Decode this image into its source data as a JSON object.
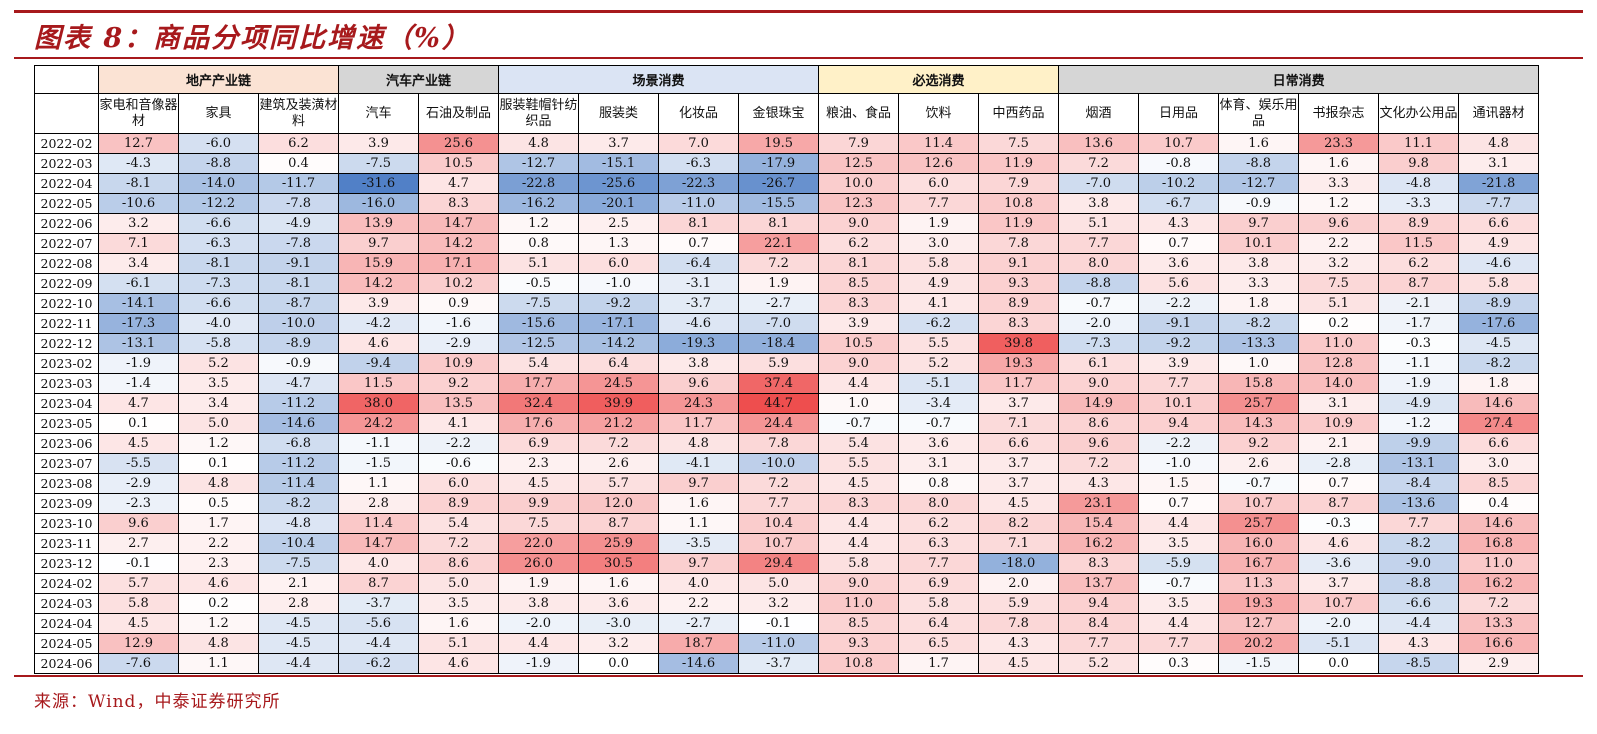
{
  "title": "图表 8：商品分项同比增速（%）",
  "source": "来源：Wind，中泰证券研究所",
  "colors": {
    "accent": "#a7191c",
    "negative_scale": "#4f7fc6",
    "positive_scale": "#ee4d4d"
  },
  "groups": [
    {
      "label": "地产产业链",
      "span": 3,
      "color": "#fbe3d4"
    },
    {
      "label": "汽车产业链",
      "span": 2,
      "color": "#d6d6d6"
    },
    {
      "label": "场景消费",
      "span": 4,
      "color": "#dbe4f4"
    },
    {
      "label": "必选消费",
      "span": 3,
      "color": "#fff1c8"
    },
    {
      "label": "日常消费",
      "span": 6,
      "color": "#d6d6d6"
    }
  ],
  "columns": [
    "家电和音像器材",
    "家具",
    "建筑及装潢材料",
    "汽车",
    "石油及制品",
    "服装鞋帽针纺织品",
    "服装类",
    "化妆品",
    "金银珠宝",
    "粮油、食品",
    "饮料",
    "中西药品",
    "烟酒",
    "日用品",
    "体育、娱乐用品",
    "书报杂志",
    "文化办公用品",
    "通讯器材"
  ],
  "rows": [
    [
      "2022-02",
      "12.7",
      "-6.0",
      "6.2",
      "3.9",
      "25.6",
      "4.8",
      "3.7",
      "7.0",
      "19.5",
      "7.9",
      "11.4",
      "7.5",
      "13.6",
      "10.7",
      "1.6",
      "23.3",
      "11.1",
      "4.8"
    ],
    [
      "2022-03",
      "-4.3",
      "-8.8",
      "0.4",
      "-7.5",
      "10.5",
      "-12.7",
      "-15.1",
      "-6.3",
      "-17.9",
      "12.5",
      "12.6",
      "11.9",
      "7.2",
      "-0.8",
      "-8.8",
      "1.6",
      "9.8",
      "3.1"
    ],
    [
      "2022-04",
      "-8.1",
      "-14.0",
      "-11.7",
      "-31.6",
      "4.7",
      "-22.8",
      "-25.6",
      "-22.3",
      "-26.7",
      "10.0",
      "6.0",
      "7.9",
      "-7.0",
      "-10.2",
      "-12.7",
      "3.3",
      "-4.8",
      "-21.8"
    ],
    [
      "2022-05",
      "-10.6",
      "-12.2",
      "-7.8",
      "-16.0",
      "8.3",
      "-16.2",
      "-20.1",
      "-11.0",
      "-15.5",
      "12.3",
      "7.7",
      "10.8",
      "3.8",
      "-6.7",
      "-0.9",
      "1.2",
      "-3.3",
      "-7.7"
    ],
    [
      "2022-06",
      "3.2",
      "-6.6",
      "-4.9",
      "13.9",
      "14.7",
      "1.2",
      "2.5",
      "8.1",
      "8.1",
      "9.0",
      "1.9",
      "11.9",
      "5.1",
      "4.3",
      "9.7",
      "9.6",
      "8.9",
      "6.6"
    ],
    [
      "2022-07",
      "7.1",
      "-6.3",
      "-7.8",
      "9.7",
      "14.2",
      "0.8",
      "1.3",
      "0.7",
      "22.1",
      "6.2",
      "3.0",
      "7.8",
      "7.7",
      "0.7",
      "10.1",
      "2.2",
      "11.5",
      "4.9"
    ],
    [
      "2022-08",
      "3.4",
      "-8.1",
      "-9.1",
      "15.9",
      "17.1",
      "5.1",
      "6.0",
      "-6.4",
      "7.2",
      "8.1",
      "5.8",
      "9.1",
      "8.0",
      "3.6",
      "3.8",
      "3.2",
      "6.2",
      "-4.6"
    ],
    [
      "2022-09",
      "-6.1",
      "-7.3",
      "-8.1",
      "14.2",
      "10.2",
      "-0.5",
      "-1.0",
      "-3.1",
      "1.9",
      "8.5",
      "4.9",
      "9.3",
      "-8.8",
      "5.6",
      "3.3",
      "7.5",
      "8.7",
      "5.8"
    ],
    [
      "2022-10",
      "-14.1",
      "-6.6",
      "-8.7",
      "3.9",
      "0.9",
      "-7.5",
      "-9.2",
      "-3.7",
      "-2.7",
      "8.3",
      "4.1",
      "8.9",
      "-0.7",
      "-2.2",
      "1.8",
      "5.1",
      "-2.1",
      "-8.9"
    ],
    [
      "2022-11",
      "-17.3",
      "-4.0",
      "-10.0",
      "-4.2",
      "-1.6",
      "-15.6",
      "-17.1",
      "-4.6",
      "-7.0",
      "3.9",
      "-6.2",
      "8.3",
      "-2.0",
      "-9.1",
      "-8.2",
      "0.2",
      "-1.7",
      "-17.6"
    ],
    [
      "2022-12",
      "-13.1",
      "-5.8",
      "-8.9",
      "4.6",
      "-2.9",
      "-12.5",
      "-14.2",
      "-19.3",
      "-18.4",
      "10.5",
      "5.5",
      "39.8",
      "-7.3",
      "-9.2",
      "-13.3",
      "11.0",
      "-0.3",
      "-4.5"
    ],
    [
      "2023-02",
      "-1.9",
      "5.2",
      "-0.9",
      "-9.4",
      "10.9",
      "5.4",
      "6.4",
      "3.8",
      "5.9",
      "9.0",
      "5.2",
      "19.3",
      "6.1",
      "3.9",
      "1.0",
      "12.8",
      "-1.1",
      "-8.2"
    ],
    [
      "2023-03",
      "-1.4",
      "3.5",
      "-4.7",
      "11.5",
      "9.2",
      "17.7",
      "24.5",
      "9.6",
      "37.4",
      "4.4",
      "-5.1",
      "11.7",
      "9.0",
      "7.7",
      "15.8",
      "14.0",
      "-1.9",
      "1.8"
    ],
    [
      "2023-04",
      "4.7",
      "3.4",
      "-11.2",
      "38.0",
      "13.5",
      "32.4",
      "39.9",
      "24.3",
      "44.7",
      "1.0",
      "-3.4",
      "3.7",
      "14.9",
      "10.1",
      "25.7",
      "3.1",
      "-4.9",
      "14.6"
    ],
    [
      "2023-05",
      "0.1",
      "5.0",
      "-14.6",
      "24.2",
      "4.1",
      "17.6",
      "21.2",
      "11.7",
      "24.4",
      "-0.7",
      "-0.7",
      "7.1",
      "8.6",
      "9.4",
      "14.3",
      "10.9",
      "-1.2",
      "27.4"
    ],
    [
      "2023-06",
      "4.5",
      "1.2",
      "-6.8",
      "-1.1",
      "-2.2",
      "6.9",
      "7.2",
      "4.8",
      "7.8",
      "5.4",
      "3.6",
      "6.6",
      "9.6",
      "-2.2",
      "9.2",
      "2.1",
      "-9.9",
      "6.6"
    ],
    [
      "2023-07",
      "-5.5",
      "0.1",
      "-11.2",
      "-1.5",
      "-0.6",
      "2.3",
      "2.6",
      "-4.1",
      "-10.0",
      "5.5",
      "3.1",
      "3.7",
      "7.2",
      "-1.0",
      "2.6",
      "-2.8",
      "-13.1",
      "3.0"
    ],
    [
      "2023-08",
      "-2.9",
      "4.8",
      "-11.4",
      "1.1",
      "6.0",
      "4.5",
      "5.7",
      "9.7",
      "7.2",
      "4.5",
      "0.8",
      "3.7",
      "4.3",
      "1.5",
      "-0.7",
      "0.7",
      "-8.4",
      "8.5"
    ],
    [
      "2023-09",
      "-2.3",
      "0.5",
      "-8.2",
      "2.8",
      "8.9",
      "9.9",
      "12.0",
      "1.6",
      "7.7",
      "8.3",
      "8.0",
      "4.5",
      "23.1",
      "0.7",
      "10.7",
      "8.7",
      "-13.6",
      "0.4"
    ],
    [
      "2023-10",
      "9.6",
      "1.7",
      "-4.8",
      "11.4",
      "5.4",
      "7.5",
      "8.7",
      "1.1",
      "10.4",
      "4.4",
      "6.2",
      "8.2",
      "15.4",
      "4.4",
      "25.7",
      "-0.3",
      "7.7",
      "14.6"
    ],
    [
      "2023-11",
      "2.7",
      "2.2",
      "-10.4",
      "14.7",
      "7.2",
      "22.0",
      "25.9",
      "-3.5",
      "10.7",
      "4.4",
      "6.3",
      "7.1",
      "16.2",
      "3.5",
      "16.0",
      "4.6",
      "-8.2",
      "16.8"
    ],
    [
      "2023-12",
      "-0.1",
      "2.3",
      "-7.5",
      "4.0",
      "8.6",
      "26.0",
      "30.5",
      "9.7",
      "29.4",
      "5.8",
      "7.7",
      "-18.0",
      "8.3",
      "-5.9",
      "16.7",
      "-3.6",
      "-9.0",
      "11.0"
    ],
    [
      "2024-02",
      "5.7",
      "4.6",
      "2.1",
      "8.7",
      "5.0",
      "1.9",
      "1.6",
      "4.0",
      "5.0",
      "9.0",
      "6.9",
      "2.0",
      "13.7",
      "-0.7",
      "11.3",
      "3.7",
      "-8.8",
      "16.2"
    ],
    [
      "2024-03",
      "5.8",
      "0.2",
      "2.8",
      "-3.7",
      "3.5",
      "3.8",
      "3.6",
      "2.2",
      "3.2",
      "11.0",
      "5.8",
      "5.9",
      "9.4",
      "3.5",
      "19.3",
      "10.7",
      "-6.6",
      "7.2"
    ],
    [
      "2024-04",
      "4.5",
      "1.2",
      "-4.5",
      "-5.6",
      "1.6",
      "-2.0",
      "-3.0",
      "-2.7",
      "-0.1",
      "8.5",
      "6.4",
      "7.8",
      "8.4",
      "4.4",
      "12.7",
      "-2.0",
      "-4.4",
      "13.3"
    ],
    [
      "2024-05",
      "12.9",
      "4.8",
      "-4.5",
      "-4.4",
      "5.1",
      "4.4",
      "3.2",
      "18.7",
      "-11.0",
      "9.3",
      "6.5",
      "4.3",
      "7.7",
      "7.7",
      "20.2",
      "-5.1",
      "4.3",
      "16.6"
    ],
    [
      "2024-06",
      "-7.6",
      "1.1",
      "-4.4",
      "-6.2",
      "4.6",
      "-1.9",
      "0.0",
      "-14.6",
      "-3.7",
      "10.8",
      "1.7",
      "4.5",
      "5.2",
      "0.3",
      "-1.5",
      "0.0",
      "-8.5",
      "2.9"
    ]
  ]
}
